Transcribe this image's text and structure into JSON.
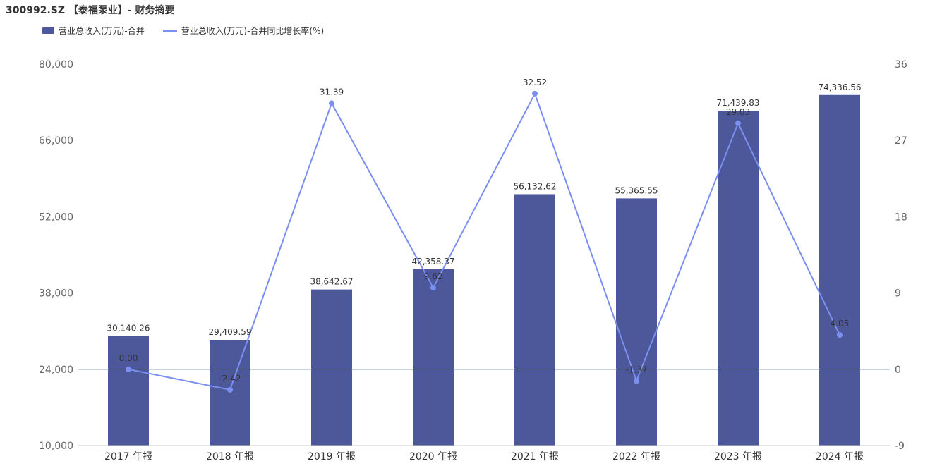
{
  "title": "300992.SZ 【泰福泵业】- 财务摘要",
  "colors": {
    "bar": "#4c5899",
    "line": "#7b8ff0",
    "axis": "#44566c"
  },
  "chart_data": {
    "type": "bar",
    "categories": [
      "2017 年报",
      "2018 年报",
      "2019 年报",
      "2020 年报",
      "2021 年报",
      "2022 年报",
      "2023 年报",
      "2024 年报"
    ],
    "series": [
      {
        "name": "营业总收入(万元)-合并",
        "type": "bar",
        "axis": "left",
        "values": [
          30140.26,
          29409.59,
          38642.67,
          42358.37,
          56132.62,
          55365.55,
          71439.83,
          74336.56
        ],
        "labels": [
          "30,140.26",
          "29,409.59",
          "38,642.67",
          "42,358.37",
          "56,132.62",
          "55,365.55",
          "71,439.83",
          "74,336.56"
        ]
      },
      {
        "name": "营业总收入(万元)-合并同比增长率(%)",
        "type": "line",
        "axis": "right",
        "values": [
          0.0,
          -2.42,
          31.39,
          9.62,
          32.52,
          -1.37,
          29.03,
          4.05
        ],
        "labels": [
          "0.00",
          "-2.42",
          "31.39",
          "9.62",
          "32.52",
          "-1.37",
          "29.03",
          "4.05"
        ]
      }
    ],
    "y_left": {
      "min": 10000,
      "max": 80000,
      "ticks": [
        10000,
        24000,
        38000,
        52000,
        66000,
        80000
      ],
      "tick_labels": [
        "10,000",
        "24,000",
        "38,000",
        "52,000",
        "66,000",
        "80,000"
      ]
    },
    "y_right": {
      "min": -9,
      "max": 36,
      "ticks": [
        -9,
        0,
        9,
        18,
        27,
        36
      ],
      "tick_labels": [
        "-9",
        "0",
        "9",
        "18",
        "27",
        "36"
      ]
    },
    "grid": false,
    "legend": "top-left"
  }
}
